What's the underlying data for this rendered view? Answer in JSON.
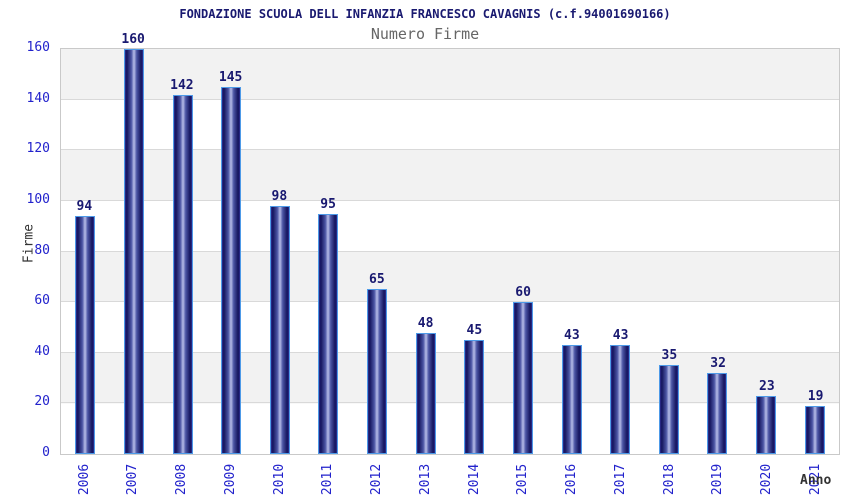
{
  "header": {
    "title": "FONDAZIONE SCUOLA DELL INFANZIA FRANCESCO CAVAGNIS (c.f.94001690166)",
    "subtitle": "Numero Firme"
  },
  "chart_data": {
    "type": "bar",
    "title": "FONDAZIONE SCUOLA DELL INFANZIA FRANCESCO CAVAGNIS (c.f.94001690166)",
    "subtitle": "Numero Firme",
    "xlabel": "Anno",
    "ylabel": "Firme",
    "categories": [
      "2006",
      "2007",
      "2008",
      "2009",
      "2010",
      "2011",
      "2012",
      "2013",
      "2014",
      "2015",
      "2016",
      "2017",
      "2018",
      "2019",
      "2020",
      "2021"
    ],
    "values": [
      94,
      160,
      142,
      145,
      98,
      95,
      65,
      48,
      45,
      60,
      43,
      43,
      35,
      32,
      23,
      19
    ],
    "ylim": [
      0,
      160
    ],
    "yticks": [
      0,
      20,
      40,
      60,
      80,
      100,
      120,
      140,
      160
    ],
    "grid": "horizontal-bands-alternating",
    "legend": "none",
    "bar_value_labels": true,
    "x_tick_rotation_deg": -90
  },
  "colors": {
    "title": "#191970",
    "subtitle": "#666666",
    "tick_labels": "#2222cc",
    "value_labels": "#191970",
    "axis_titles": "#333333",
    "bar_outline": "#4d9ae8",
    "bar_dark": "#14145c",
    "bar_mid": "#4b55a4",
    "bar_light": "#b7bde8",
    "band_gray": "#f2f2f2",
    "gridline": "#d9d9d9",
    "plot_border": "#c9c9c9"
  }
}
